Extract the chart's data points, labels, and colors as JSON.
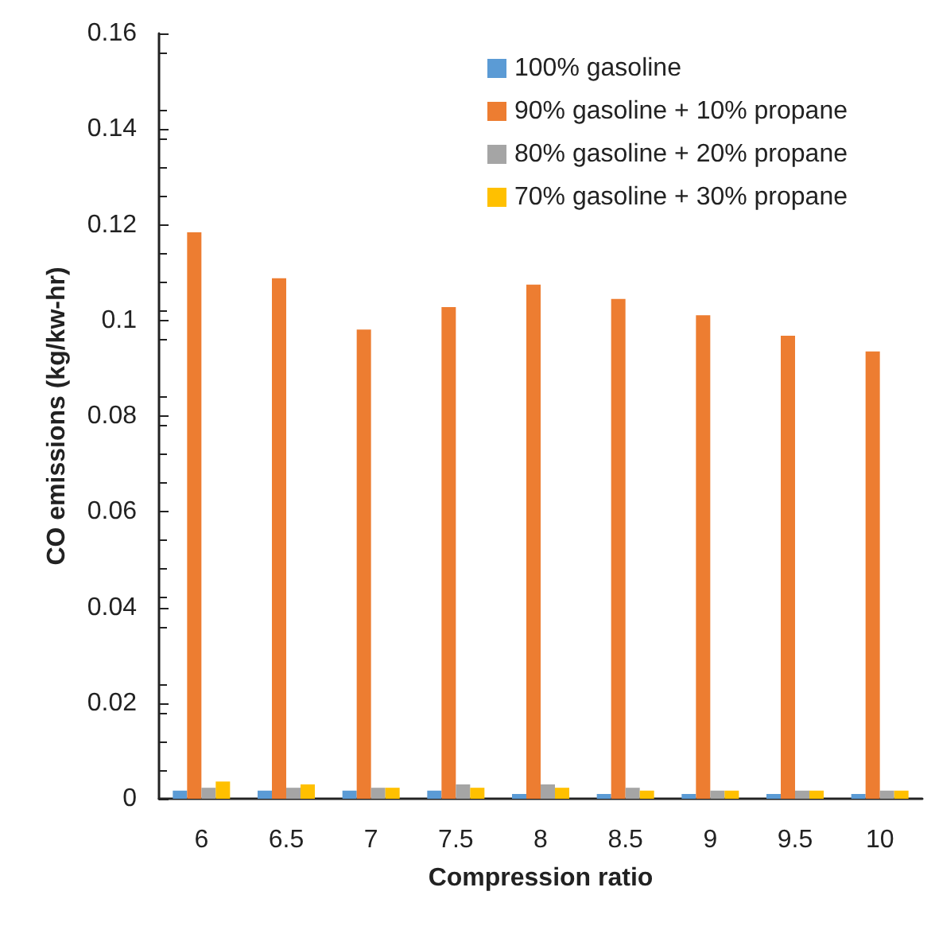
{
  "chart_data": {
    "type": "bar",
    "xlabel": "Compression ratio",
    "ylabel": "CO emissions (kg/kw-hr)",
    "categories": [
      "6",
      "6.5",
      "7",
      "7.5",
      "8",
      "8.5",
      "9",
      "9.5",
      "10"
    ],
    "series": [
      {
        "name": "100% gasoline",
        "color": "#5b9bd5",
        "values": [
          0.0017,
          0.0017,
          0.0017,
          0.0017,
          0.001,
          0.001,
          0.001,
          0.001,
          0.001
        ]
      },
      {
        "name": "90% gasoline + 10% propane",
        "color": "#ed7d31",
        "values": [
          0.1184,
          0.1088,
          0.0981,
          0.1028,
          0.1075,
          0.1045,
          0.1011,
          0.0968,
          0.0935
        ]
      },
      {
        "name": "80% gasoline + 20% propane",
        "color": "#a5a5a5",
        "values": [
          0.0023,
          0.0023,
          0.0023,
          0.003,
          0.003,
          0.0023,
          0.0017,
          0.0017,
          0.0017
        ]
      },
      {
        "name": "70% gasoline + 30% propane",
        "color": "#ffc000",
        "values": [
          0.0036,
          0.003,
          0.0023,
          0.0023,
          0.0023,
          0.0017,
          0.0017,
          0.0017,
          0.0017
        ]
      }
    ],
    "ylim": [
      0,
      0.16
    ],
    "yticks": [
      0,
      0.02,
      0.04,
      0.06,
      0.08,
      0.1,
      0.12,
      0.14,
      0.16
    ],
    "grid": false,
    "legend": "top right"
  }
}
